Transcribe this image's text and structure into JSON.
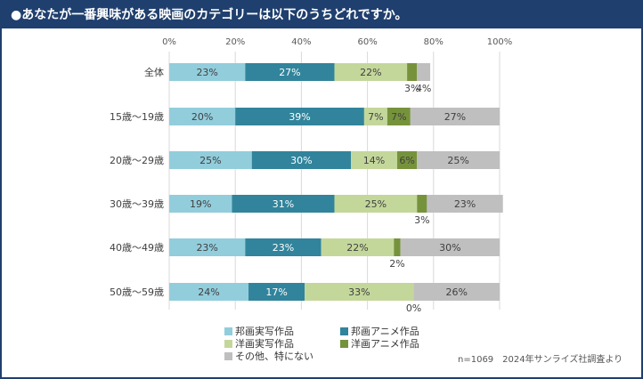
{
  "title": "●あなたが一番興味がある映画のカテゴリーは以下のうちどれですか。",
  "source_note": "n=1069　2024年サンライズ社調査より",
  "chart_data": {
    "type": "bar",
    "orientation": "horizontal",
    "stacked": true,
    "x_ticks": [
      "0%",
      "20%",
      "40%",
      "60%",
      "80%",
      "100%"
    ],
    "xlim": [
      0,
      100
    ],
    "grid": true,
    "legend_placement": "bottom",
    "categories": [
      "全体",
      "15歳～19歳",
      "20歳～29歳",
      "30歳～39歳",
      "40歳～49歳",
      "50歳～59歳"
    ],
    "series": [
      {
        "name": "邦画実写作品",
        "color": "#92cddc",
        "values": [
          23,
          20,
          25,
          19,
          23,
          24
        ],
        "labels": [
          "23%",
          "20%",
          "25%",
          "19%",
          "23%",
          "24%"
        ]
      },
      {
        "name": "邦画アニメ作品",
        "color": "#31849b",
        "values": [
          27,
          39,
          30,
          31,
          23,
          17
        ],
        "labels": [
          "27%",
          "39%",
          "30%",
          "31%",
          "23%",
          "17%"
        ]
      },
      {
        "name": "洋画実写作品",
        "color": "#c4d79b",
        "values": [
          22,
          7,
          14,
          25,
          22,
          33
        ],
        "labels": [
          "22%",
          "7%",
          "14%",
          "25%",
          "22%",
          "33%"
        ]
      },
      {
        "name": "洋画アニメ作品",
        "color": "#76933c",
        "values": [
          3,
          7,
          6,
          3,
          2,
          0
        ],
        "labels": [
          "3%",
          "7%",
          "6%",
          "3%",
          "2%",
          "0%"
        ]
      },
      {
        "name": "その他、特にない",
        "color": "#bfbfbf",
        "values": [
          4,
          27,
          25,
          23,
          30,
          26
        ],
        "labels": [
          "4%",
          "27%",
          "25%",
          "23%",
          "30%",
          "26%"
        ]
      }
    ]
  }
}
